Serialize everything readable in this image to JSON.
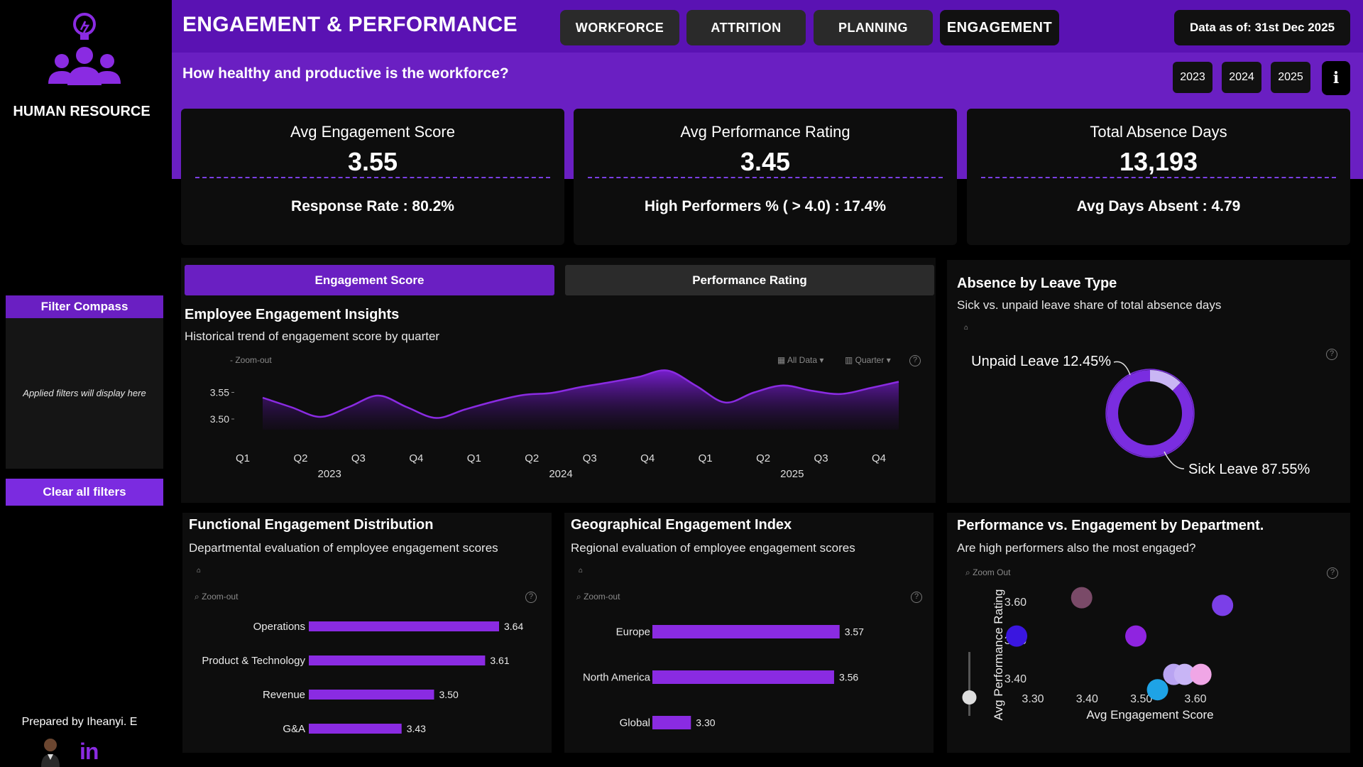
{
  "sidebar": {
    "title": "HUMAN RESOURCE",
    "filter_title": "Filter Compass",
    "filter_msg": "Applied filters will display here",
    "clear_label": "Clear all filters",
    "prepared_by": "Prepared by Iheanyi. E",
    "linkedin": "in"
  },
  "header": {
    "title": "ENGAEMENT & PERFORMANCE",
    "subtitle": "How healthy and productive is the workforce?",
    "data_asof": "Data as of: 31st Dec 2025",
    "nav": [
      "WORKFORCE",
      "ATTRITION",
      "PLANNING",
      "ENGAGEMENT"
    ],
    "active_nav": "ENGAGEMENT",
    "years": [
      "2023",
      "2024",
      "2025"
    ],
    "info": "i"
  },
  "kpis": [
    {
      "label": "Avg Engagement Score",
      "value": "3.55",
      "sub": "Response Rate : 80.2%"
    },
    {
      "label": "Avg Performance Rating",
      "value": "3.45",
      "sub": "High Performers % ( > 4.0) : 17.4%"
    },
    {
      "label": "Total Absence Days",
      "value": "13,193",
      "sub": "Avg Days Absent : 4.79"
    }
  ],
  "tabs": {
    "engagement": "Engagement Score",
    "performance": "Performance Rating"
  },
  "trend": {
    "title": "Employee Engagement Insights",
    "subtitle": "Historical trend of engagement score by quarter",
    "zoom_out": "- Zoom-out",
    "all_data": "All Data",
    "quarter": "Quarter",
    "help": "?"
  },
  "functional": {
    "title": "Functional Engagement Distribution",
    "subtitle": "Departmental evaluation of employee engagement scores",
    "zoom_out": "Zoom-out",
    "help": "?"
  },
  "geo": {
    "title": "Geographical Engagement Index",
    "subtitle": "Regional evaluation of employee engagement scores",
    "zoom_out": "Zoom-out",
    "help": "?"
  },
  "absence": {
    "title": "Absence by Leave Type",
    "subtitle": "Sick vs. unpaid leave share of total absence days",
    "help": "?"
  },
  "scatter": {
    "title": "Performance vs. Engagement by Department.",
    "subtitle": "Are high performers also the most engaged?",
    "zoom_out": "Zoom Out",
    "help": "?"
  },
  "colors": {
    "accent": "#6a1fc2",
    "bar": "#8a2be2",
    "header": "#5a12b3"
  },
  "chart_data": [
    {
      "type": "area",
      "categories": [
        "Q1",
        "Q2",
        "Q3",
        "Q4",
        "Q1",
        "Q2",
        "Q3",
        "Q4",
        "Q1",
        "Q2",
        "Q3",
        "Q4"
      ],
      "years": [
        "2023",
        "2024",
        "2025"
      ],
      "x": [
        "2023 Q1",
        "2023 Q1.5",
        "2023 Q2",
        "2023 Q2.5",
        "2023 Q3",
        "2023 Q3.5",
        "2023 Q4",
        "2023 Q4.5",
        "2024 Q1",
        "2024 Q1.5",
        "2024 Q2",
        "2024 Q2.5",
        "2024 Q3",
        "2024 Q3.5",
        "2024 Q4",
        "2024 Q4.5",
        "2025 Q1",
        "2025 Q1.5",
        "2025 Q2",
        "2025 Q2.5",
        "2025 Q3",
        "2025 Q3.5",
        "2025 Q4"
      ],
      "values": [
        3.54,
        3.522,
        3.504,
        3.523,
        3.544,
        3.522,
        3.502,
        3.518,
        3.533,
        3.545,
        3.549,
        3.56,
        3.569,
        3.579,
        3.591,
        3.562,
        3.531,
        3.55,
        3.563,
        3.553,
        3.547,
        3.558,
        3.57
      ],
      "yticks": [
        3.5,
        3.55
      ],
      "ylim": [
        3.48,
        3.6
      ]
    },
    {
      "type": "bar",
      "categories": [
        "Operations",
        "Product & Technology",
        "Revenue",
        "G&A"
      ],
      "values": [
        3.64,
        3.61,
        3.5,
        3.43
      ]
    },
    {
      "type": "bar",
      "categories": [
        "Europe",
        "North America",
        "Global"
      ],
      "values": [
        3.57,
        3.56,
        3.3
      ]
    },
    {
      "type": "pie",
      "categories": [
        "Unpaid Leave",
        "Sick Leave"
      ],
      "values": [
        12.45,
        87.55
      ],
      "labels": [
        "Unpaid Leave 12.45%",
        "Sick Leave 87.55%"
      ]
    },
    {
      "type": "scatter",
      "xlabel": "Avg Engagement Score",
      "ylabel": "Avg Performance Rating",
      "xticks": [
        3.3,
        3.4,
        3.5,
        3.6
      ],
      "yticks": [
        3.4,
        3.5,
        3.6
      ],
      "xlim": [
        3.24,
        3.68
      ],
      "ylim": [
        3.369,
        3.645
      ],
      "points": [
        {
          "x": 3.27,
          "y": 3.51,
          "color": "#3a16e0"
        },
        {
          "x": 3.39,
          "y": 3.61,
          "color": "#7a4a68"
        },
        {
          "x": 3.49,
          "y": 3.51,
          "color": "#8f24e0"
        },
        {
          "x": 3.65,
          "y": 3.59,
          "color": "#7b3fe8"
        },
        {
          "x": 3.56,
          "y": 3.41,
          "color": "#b9a4f2"
        },
        {
          "x": 3.58,
          "y": 3.41,
          "color": "#c8b5f6"
        },
        {
          "x": 3.61,
          "y": 3.41,
          "color": "#f0a6e6"
        },
        {
          "x": 3.53,
          "y": 3.37,
          "color": "#1ea3e6"
        }
      ]
    }
  ]
}
